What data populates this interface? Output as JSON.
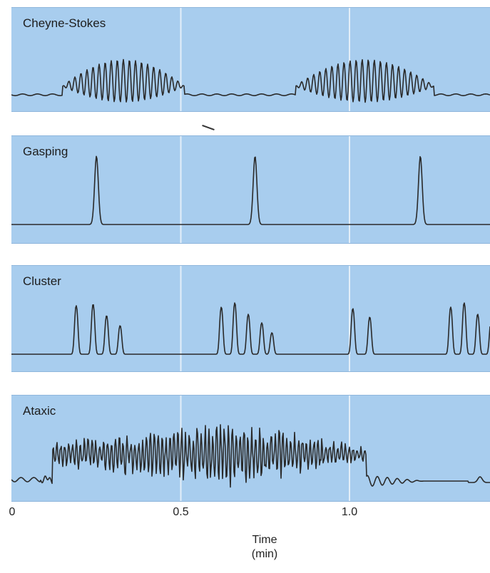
{
  "chart_data": {
    "type": "line",
    "x_axis": {
      "ticks": [
        {
          "value": 0,
          "label": "0"
        },
        {
          "value": 0.5,
          "label": "0.5"
        },
        {
          "value": 1.0,
          "label": "1.0"
        }
      ],
      "label_line1": "Time",
      "label_line2": "(min)",
      "range": [
        0,
        1.42
      ]
    },
    "grid": true,
    "panels": [
      {
        "id": "cheyne",
        "label": "Cheyne-Stokes",
        "pattern": "crescendo-decrescendo",
        "bursts": [
          {
            "start": 0.15,
            "end": 0.51
          },
          {
            "start": 0.84,
            "end": 1.25
          }
        ]
      },
      {
        "id": "gasping",
        "label": "Gasping",
        "pattern": "isolated-gasps",
        "peaks": [
          0.25,
          0.72,
          1.21
        ]
      },
      {
        "id": "cluster",
        "label": "Cluster",
        "pattern": "breath-clusters",
        "peaks": [
          0.19,
          0.24,
          0.28,
          0.32,
          0.62,
          0.66,
          0.7,
          0.74,
          0.77,
          1.01,
          1.06,
          1.3,
          1.34,
          1.38,
          1.42
        ]
      },
      {
        "id": "ataxic",
        "label": "Ataxic",
        "pattern": "irregular",
        "active_range": [
          0.12,
          1.05
        ]
      }
    ]
  },
  "colors": {
    "panel_bg": "#a8cdee",
    "trace": "#2a2a2a",
    "grid": "#e3eef8"
  }
}
